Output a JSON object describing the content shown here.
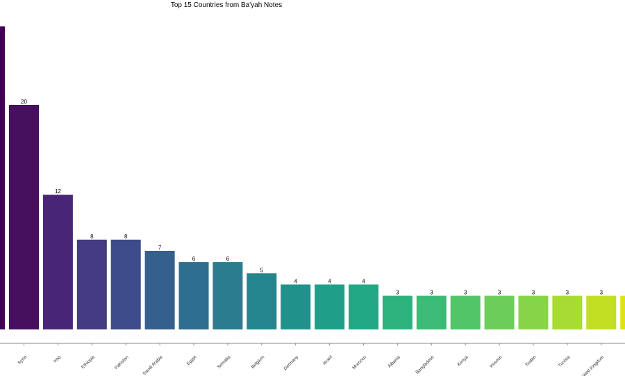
{
  "chart_data": {
    "type": "bar",
    "title": "Top 15 Countries from Ba'yah Notes",
    "xlabel": "",
    "ylabel": "",
    "ylim": [
      0,
      28
    ],
    "grid": false,
    "legend": "none",
    "categories": [
      "",
      "Syria",
      "Iraq",
      "Ethiopia",
      "Pakistan",
      "Saudi Arabia",
      "Egypt",
      "Somalia",
      "Belgium",
      "Germany",
      "Israel",
      "Morocco",
      "Albania",
      "Bangladesh",
      "Kenya",
      "Kosovo",
      "Sudan",
      "Tunisia",
      "United Kingdom",
      ""
    ],
    "values": [
      27,
      20,
      12,
      8,
      8,
      7,
      6,
      6,
      5,
      4,
      4,
      4,
      3,
      3,
      3,
      3,
      3,
      3,
      3,
      3
    ],
    "value_labels": [
      "",
      "20",
      "12",
      "8",
      "8",
      "7",
      "6",
      "6",
      "5",
      "4",
      "4",
      "4",
      "3",
      "3",
      "3",
      "3",
      "3",
      "3",
      "3",
      ""
    ],
    "colors": [
      "#440154",
      "#46105f",
      "#482576",
      "#443983",
      "#3d4b8a",
      "#355f8d",
      "#2e6e8e",
      "#2a7c8e",
      "#25858e",
      "#21918c",
      "#1f9e89",
      "#22a884",
      "#2db27d",
      "#3bbb75",
      "#52c569",
      "#6ccd5a",
      "#86d549",
      "#a8db34",
      "#c2df23",
      "#dde318"
    ]
  }
}
